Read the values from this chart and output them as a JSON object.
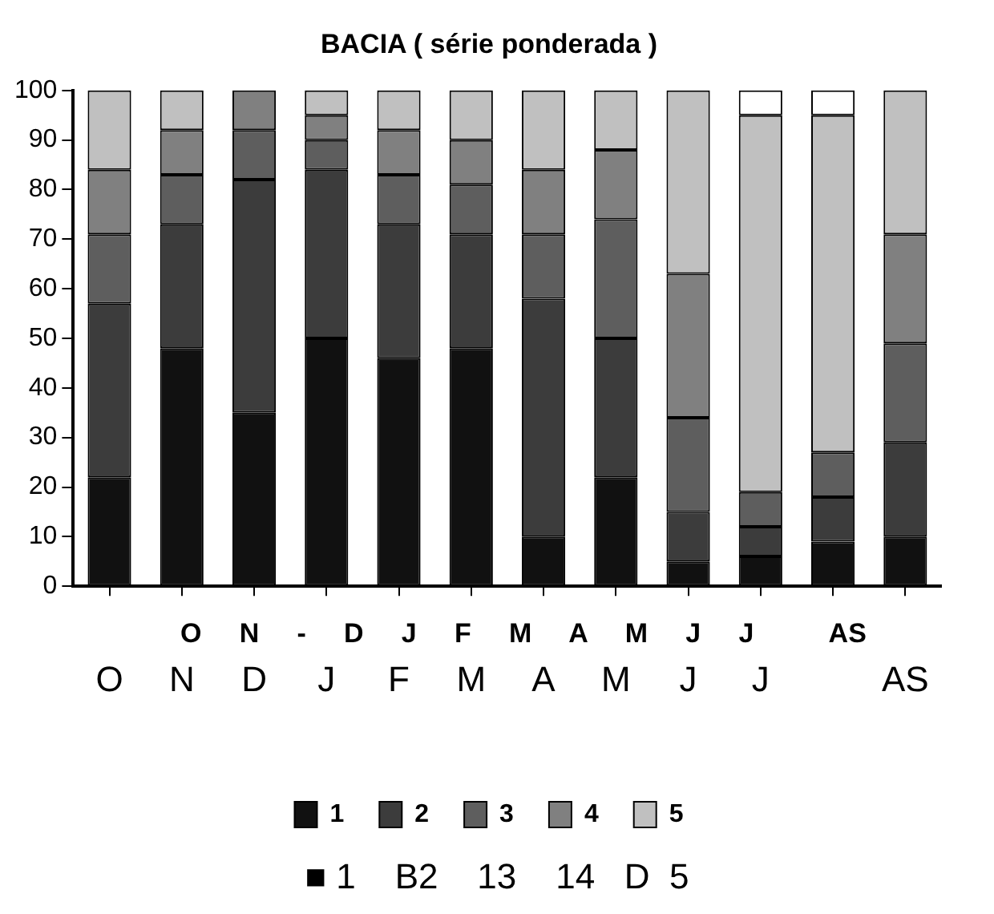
{
  "chart_data": {
    "type": "bar",
    "title": "BACIA ( série ponderada )",
    "stacked": true,
    "categories": [
      "O",
      "N",
      "D",
      "J",
      "F",
      "M",
      "A",
      "M",
      "J",
      "J",
      null,
      "AS"
    ],
    "series": [
      {
        "name": "1",
        "color": "#111111",
        "values": [
          22,
          48,
          35,
          50,
          46,
          48,
          10,
          22,
          5,
          6,
          9,
          10
        ]
      },
      {
        "name": "2",
        "color": "#3c3c3c",
        "values": [
          35,
          25,
          47,
          34,
          27,
          23,
          48,
          28,
          10,
          6,
          9,
          19
        ]
      },
      {
        "name": "3",
        "color": "#5e5e5e",
        "values": [
          14,
          10,
          10,
          6,
          10,
          10,
          13,
          24,
          19,
          7,
          9,
          20
        ]
      },
      {
        "name": "4",
        "color": "#808080",
        "values": [
          13,
          9,
          8,
          5,
          9,
          9,
          13,
          14,
          29,
          0,
          0,
          22
        ]
      },
      {
        "name": "5",
        "color": "#c0c0c0",
        "values": [
          16,
          8,
          0,
          5,
          8,
          10,
          16,
          12,
          37,
          76,
          68,
          29
        ]
      },
      {
        "color": "#ffffff",
        "values": [
          null,
          null,
          null,
          null,
          null,
          null,
          null,
          null,
          null,
          5,
          5,
          null
        ]
      }
    ],
    "ylim": [
      0,
      100
    ],
    "yticks": [
      0,
      10,
      20,
      30,
      40,
      50,
      60,
      70,
      80,
      90,
      100
    ],
    "legend": "bottom",
    "annotations": [
      "O     N     -     D     J     F     M     A     M     J     J          AS",
      "■ 1    B2    13    14   D  5"
    ]
  }
}
